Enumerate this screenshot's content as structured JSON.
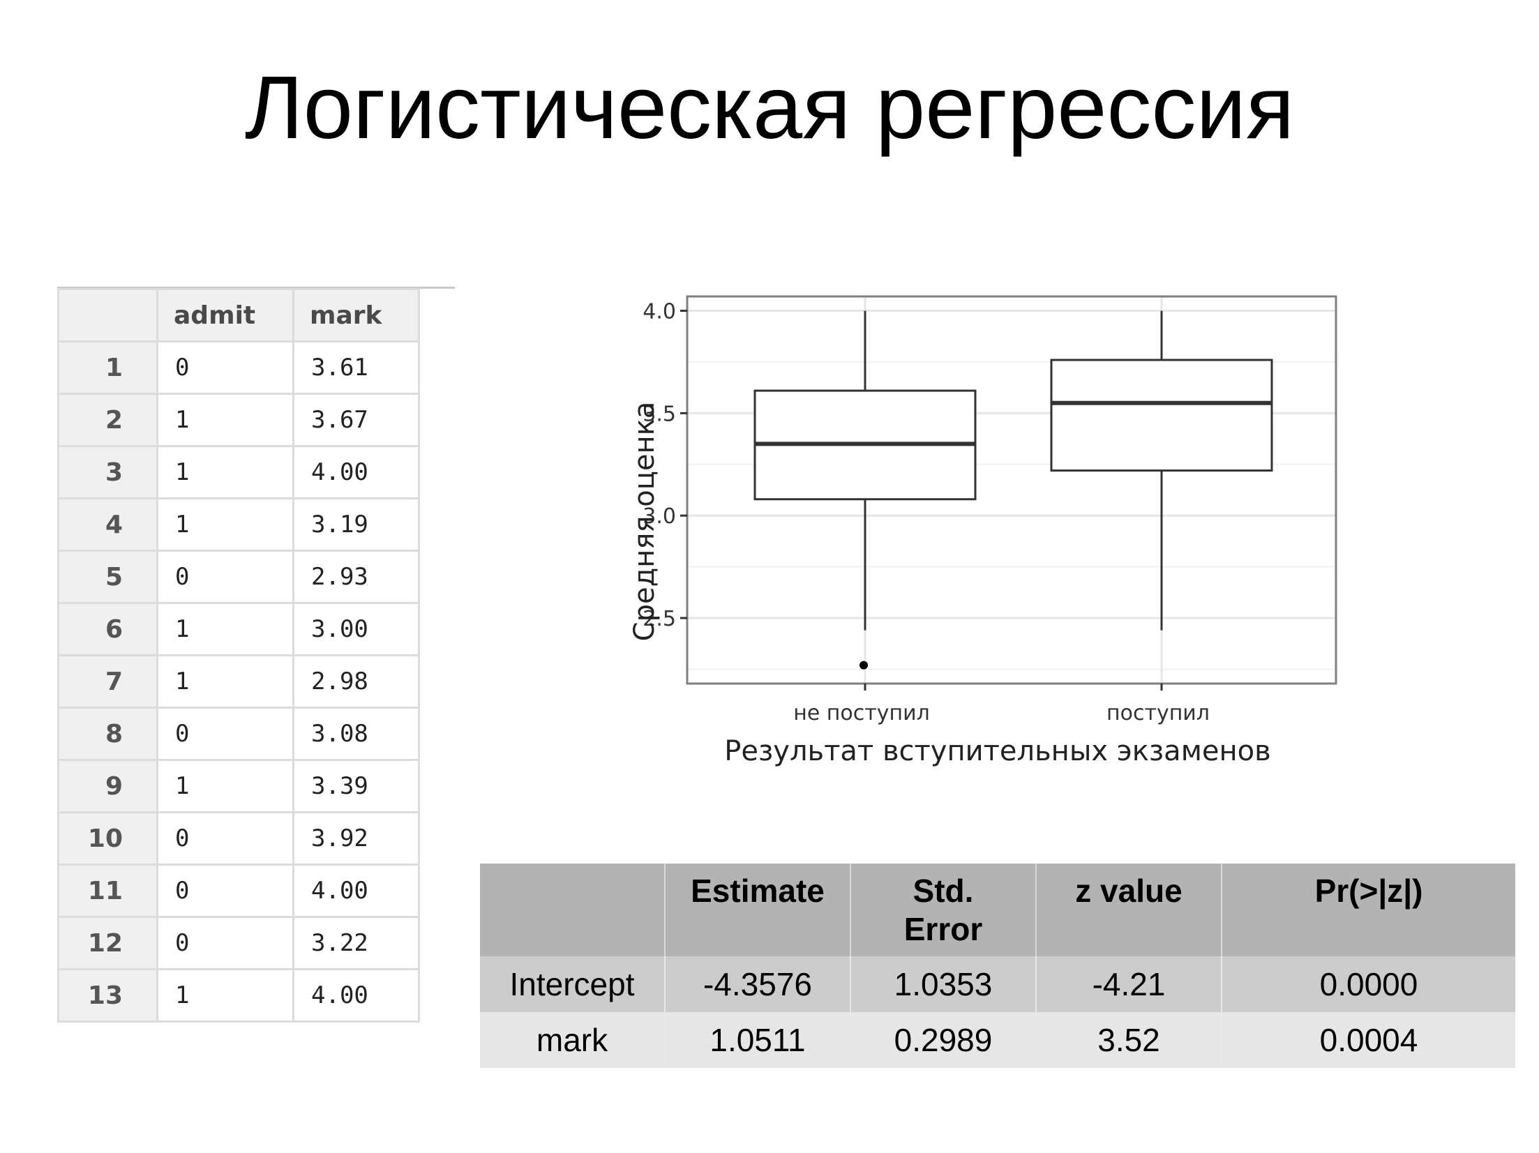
{
  "slide": {
    "title": "Логистическая регрессия"
  },
  "data_table": {
    "headers": [
      "",
      "admit",
      "mark"
    ],
    "rows": [
      {
        "n": "1",
        "admit": "0",
        "mark": "3.61"
      },
      {
        "n": "2",
        "admit": "1",
        "mark": "3.67"
      },
      {
        "n": "3",
        "admit": "1",
        "mark": "4.00"
      },
      {
        "n": "4",
        "admit": "1",
        "mark": "3.19"
      },
      {
        "n": "5",
        "admit": "0",
        "mark": "2.93"
      },
      {
        "n": "6",
        "admit": "1",
        "mark": "3.00"
      },
      {
        "n": "7",
        "admit": "1",
        "mark": "2.98"
      },
      {
        "n": "8",
        "admit": "0",
        "mark": "3.08"
      },
      {
        "n": "9",
        "admit": "1",
        "mark": "3.39"
      },
      {
        "n": "10",
        "admit": "0",
        "mark": "3.92"
      },
      {
        "n": "11",
        "admit": "0",
        "mark": "4.00"
      },
      {
        "n": "12",
        "admit": "0",
        "mark": "3.22"
      },
      {
        "n": "13",
        "admit": "1",
        "mark": "4.00"
      }
    ]
  },
  "chart_data": {
    "type": "boxplot",
    "xlabel": "Результат вступительных экзаменов",
    "ylabel": "Средняя оценка",
    "ylim": [
      2.18,
      4.07
    ],
    "yticks": [
      2.5,
      3.0,
      3.5,
      4.0
    ],
    "ytick_labels": [
      "2.5",
      "3.0",
      "3.5",
      "4.0"
    ],
    "grid": true,
    "categories": [
      "не поступил",
      "поступил"
    ],
    "boxes": [
      {
        "category": "не поступил",
        "whisker_low": 2.44,
        "q1": 3.08,
        "median": 3.35,
        "q3": 3.61,
        "whisker_high": 4.0,
        "outliers": [
          2.27
        ]
      },
      {
        "category": "поступил",
        "whisker_low": 2.44,
        "q1": 3.22,
        "median": 3.55,
        "q3": 3.76,
        "whisker_high": 4.0,
        "outliers": []
      }
    ],
    "colors": {
      "box": "#333333",
      "grid": "#e6e6e6",
      "frame": "#7f7f7f"
    }
  },
  "coef_table": {
    "headers": [
      "",
      "Estimate",
      "Std.\nError",
      "z value",
      "Pr(>|z|)"
    ],
    "rows": [
      {
        "term": "Intercept",
        "estimate": "-4.3576",
        "std_error": "1.0353",
        "z_value": "-4.21",
        "p_value": "0.0000"
      },
      {
        "term": "mark",
        "estimate": "1.0511",
        "std_error": "0.2989",
        "z_value": "3.52",
        "p_value": "0.0004"
      }
    ]
  }
}
